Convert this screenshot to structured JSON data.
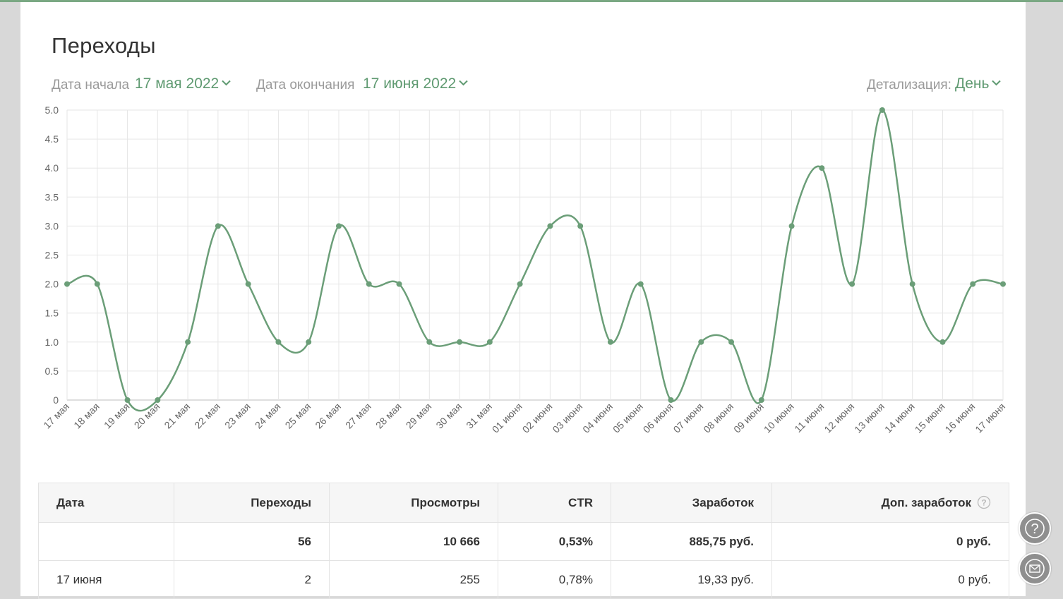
{
  "page": {
    "title": "Переходы",
    "accent_color": "#5f9a71"
  },
  "filters": {
    "start_label": "Дата начала",
    "start_value": "17 мая 2022",
    "end_label": "Дата окончания",
    "end_value": "17 июня 2022",
    "detail_label": "Детализация:",
    "detail_value": "День"
  },
  "chart_data": {
    "type": "line",
    "title": "",
    "xlabel": "",
    "ylabel": "",
    "ylim": [
      0,
      5
    ],
    "yticks": [
      "0",
      "0.5",
      "1.0",
      "1.5",
      "2.0",
      "2.5",
      "3.0",
      "3.5",
      "4.0",
      "4.5",
      "5.0"
    ],
    "grid": true,
    "smooth": true,
    "color": "#6b9e78",
    "categories": [
      "17 мая",
      "18 мая",
      "19 мая",
      "20 мая",
      "21 мая",
      "22 мая",
      "23 мая",
      "24 мая",
      "25 мая",
      "26 мая",
      "27 мая",
      "28 мая",
      "29 мая",
      "30 мая",
      "31 мая",
      "01 июня",
      "02 июня",
      "03 июня",
      "04 июня",
      "05 июня",
      "06 июня",
      "07 июня",
      "08 июня",
      "09 июня",
      "10 июня",
      "11 июня",
      "12 июня",
      "13 июня",
      "14 июня",
      "15 июня",
      "16 июня",
      "17 июня"
    ],
    "values": [
      2,
      2,
      0,
      0,
      1,
      3,
      2,
      1,
      1,
      3,
      2,
      2,
      1,
      1,
      1,
      2,
      3,
      3,
      1,
      2,
      0,
      1,
      1,
      0,
      3,
      4,
      2,
      5,
      2,
      1,
      2,
      2
    ]
  },
  "table": {
    "headers": [
      "Дата",
      "Переходы",
      "Просмотры",
      "CTR",
      "Заработок",
      "Доп. заработок"
    ],
    "total_row": [
      "",
      "56",
      "10 666",
      "0,53%",
      "885,75 руб.",
      "0 руб."
    ],
    "rows": [
      [
        "17 июня",
        "2",
        "255",
        "0,78%",
        "19,33 руб.",
        "0 руб."
      ]
    ]
  },
  "icons": {
    "dropdown": "chevron-down-icon",
    "info": "question-circle-icon",
    "help": "help-icon",
    "mail": "mail-icon"
  }
}
